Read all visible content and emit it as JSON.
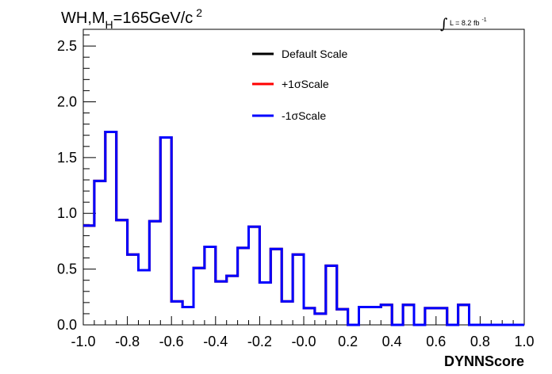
{
  "chart_data": {
    "type": "line",
    "title": {
      "main": "WH,M",
      "subscript": "H",
      "rest": "=165GeV/c",
      "superscript": "2"
    },
    "luminosity": {
      "integral_sign": "∫",
      "label": "L = 8.2 fb",
      "superscript": "-1"
    },
    "xlabel": "DYNNScore",
    "ylabel": "",
    "xlim": [
      -1.0,
      1.0
    ],
    "ylim": [
      0.0,
      2.65
    ],
    "x_ticks": [
      "-1.0",
      "-0.8",
      "-0.6",
      "-0.4",
      "-0.2",
      "-0.0",
      "0.2",
      "0.4",
      "0.6",
      "0.8",
      "1.0"
    ],
    "y_ticks": [
      "0.0",
      "0.5",
      "1.0",
      "1.5",
      "2.0",
      "2.5"
    ],
    "bin_edges": [
      -1.0,
      -0.95,
      -0.9,
      -0.85,
      -0.8,
      -0.75,
      -0.7,
      -0.65,
      -0.6,
      -0.55,
      -0.5,
      -0.45,
      -0.4,
      -0.35,
      -0.3,
      -0.25,
      -0.2,
      -0.15,
      -0.1,
      -0.05,
      0.0,
      0.05,
      0.1,
      0.15,
      0.2,
      0.25,
      0.3,
      0.35,
      0.4,
      0.45,
      0.5,
      0.55,
      0.6,
      0.65,
      0.7,
      0.75,
      0.8,
      0.85,
      0.9,
      0.95,
      1.0
    ],
    "series": [
      {
        "name": "Default Scale",
        "color": "#000000",
        "values": [
          0.89,
          1.29,
          1.73,
          0.94,
          0.63,
          0.49,
          0.93,
          1.68,
          0.21,
          0.16,
          0.51,
          0.7,
          0.39,
          0.44,
          0.69,
          0.88,
          0.38,
          0.68,
          0.21,
          0.63,
          0.15,
          0.1,
          0.53,
          0.14,
          0.0,
          0.16,
          0.16,
          0.18,
          0.0,
          0.18,
          0.0,
          0.15,
          0.15,
          0.0,
          0.18,
          0.0,
          0.0,
          0.0,
          0.0,
          0.0
        ]
      },
      {
        "name": "+1σScale",
        "color": "#ff0000",
        "values": [
          0.89,
          1.29,
          1.73,
          0.94,
          0.63,
          0.49,
          0.93,
          1.68,
          0.21,
          0.16,
          0.51,
          0.7,
          0.39,
          0.44,
          0.69,
          0.88,
          0.38,
          0.68,
          0.21,
          0.63,
          0.15,
          0.1,
          0.53,
          0.14,
          0.0,
          0.16,
          0.16,
          0.18,
          0.0,
          0.18,
          0.0,
          0.15,
          0.15,
          0.0,
          0.18,
          0.0,
          0.0,
          0.0,
          0.0,
          0.0
        ]
      },
      {
        "name": "-1σScale",
        "color": "#0000ff",
        "values": [
          0.89,
          1.29,
          1.73,
          0.94,
          0.63,
          0.49,
          0.93,
          1.68,
          0.21,
          0.16,
          0.51,
          0.7,
          0.39,
          0.44,
          0.69,
          0.88,
          0.38,
          0.68,
          0.21,
          0.63,
          0.15,
          0.1,
          0.53,
          0.14,
          0.0,
          0.16,
          0.16,
          0.18,
          0.0,
          0.18,
          0.0,
          0.15,
          0.15,
          0.0,
          0.18,
          0.0,
          0.0,
          0.0,
          0.0,
          0.0
        ]
      }
    ],
    "legend": {
      "position": "top-center",
      "entries": [
        "Default Scale",
        "+1σScale",
        "-1σScale"
      ]
    },
    "grid": false
  }
}
